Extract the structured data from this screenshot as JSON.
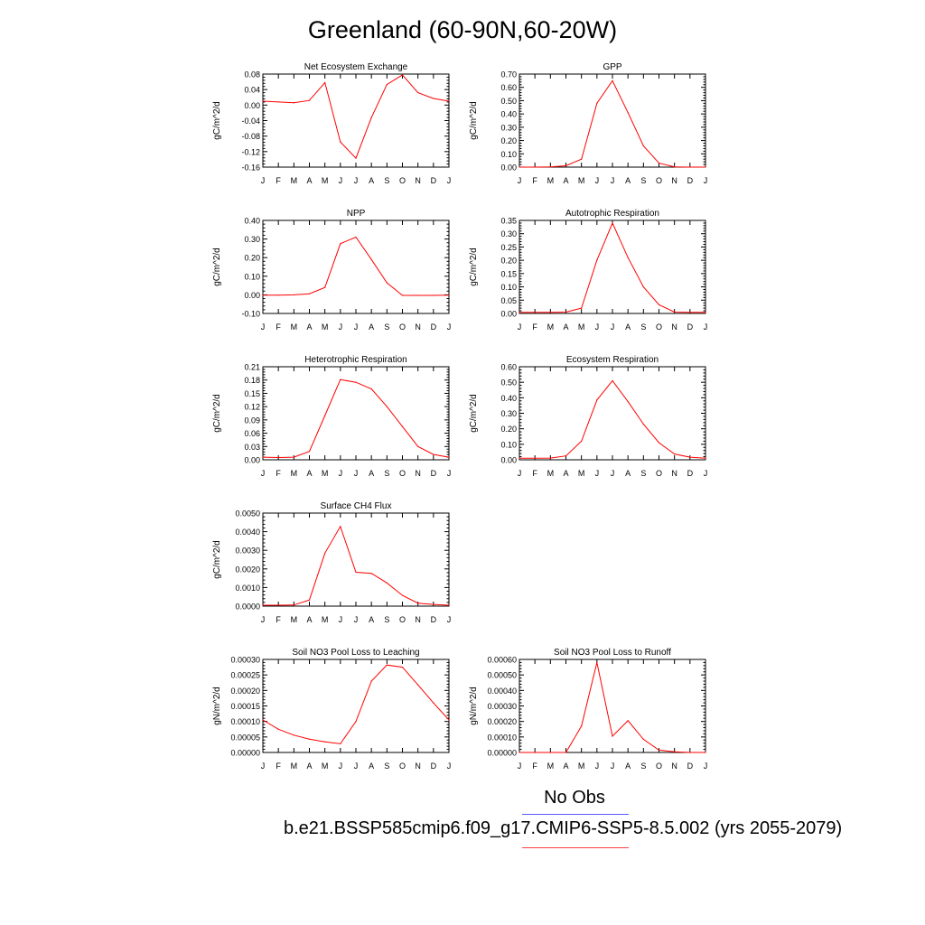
{
  "title": "Greenland (60-90N,60-20W)",
  "legend": {
    "obs_label": "No Obs",
    "case_label": "b.e21.BSSP585cmip6.f09_g17.CMIP6-SSP5-8.5.002 (yrs 2055-2079)",
    "obs_color": "#5a5aff",
    "case_color": "#ff0000"
  },
  "chart_data": [
    {
      "type": "line",
      "title": "Net Ecosystem Exchange",
      "ylabel": "gC/m^2/d",
      "categories": [
        "J",
        "F",
        "M",
        "A",
        "M",
        "J",
        "J",
        "A",
        "S",
        "O",
        "N",
        "D",
        "J"
      ],
      "yticks": [
        "-0.16",
        "-0.12",
        "-0.08",
        "-0.04",
        "0.00",
        "0.04",
        "0.08"
      ],
      "ylim": [
        -0.16,
        0.08
      ],
      "values": [
        0.01,
        0.008,
        0.006,
        0.012,
        0.058,
        -0.095,
        -0.137,
        -0.032,
        0.053,
        0.078,
        0.032,
        0.017,
        0.01
      ],
      "color": "#ff0000"
    },
    {
      "type": "line",
      "title": "GPP",
      "ylabel": "gC/m^2/d",
      "categories": [
        "J",
        "F",
        "M",
        "A",
        "M",
        "J",
        "J",
        "A",
        "S",
        "O",
        "N",
        "D",
        "J"
      ],
      "yticks": [
        "0.00",
        "0.10",
        "0.20",
        "0.30",
        "0.40",
        "0.50",
        "0.60",
        "0.70"
      ],
      "ylim": [
        0,
        0.7
      ],
      "values": [
        0.0,
        0.0,
        0.002,
        0.01,
        0.06,
        0.48,
        0.65,
        0.41,
        0.16,
        0.03,
        0.002,
        0.0,
        0.0
      ],
      "color": "#ff0000"
    },
    {
      "type": "line",
      "title": "NPP",
      "ylabel": "gC/m^2/d",
      "categories": [
        "J",
        "F",
        "M",
        "A",
        "M",
        "J",
        "J",
        "A",
        "S",
        "O",
        "N",
        "D",
        "J"
      ],
      "yticks": [
        "-0.10",
        "0.00",
        "0.10",
        "0.20",
        "0.30",
        "0.40"
      ],
      "ylim": [
        -0.1,
        0.4
      ],
      "values": [
        -0.002,
        -0.002,
        0.0,
        0.006,
        0.04,
        0.275,
        0.31,
        0.19,
        0.065,
        -0.003,
        -0.003,
        -0.003,
        -0.002
      ],
      "color": "#ff0000"
    },
    {
      "type": "line",
      "title": "Autotrophic Respiration",
      "ylabel": "gC/m^2/d",
      "categories": [
        "J",
        "F",
        "M",
        "A",
        "M",
        "J",
        "J",
        "A",
        "S",
        "O",
        "N",
        "D",
        "J"
      ],
      "yticks": [
        "0.00",
        "0.05",
        "0.10",
        "0.15",
        "0.20",
        "0.25",
        "0.30",
        "0.35"
      ],
      "ylim": [
        0,
        0.35
      ],
      "values": [
        0.004,
        0.004,
        0.004,
        0.005,
        0.02,
        0.2,
        0.34,
        0.21,
        0.1,
        0.033,
        0.005,
        0.004,
        0.004
      ],
      "color": "#ff0000"
    },
    {
      "type": "line",
      "title": "Heterotrophic Respiration",
      "ylabel": "gC/m^2/d",
      "categories": [
        "J",
        "F",
        "M",
        "A",
        "M",
        "J",
        "J",
        "A",
        "S",
        "O",
        "N",
        "D",
        "J"
      ],
      "yticks": [
        "0.00",
        "0.03",
        "0.06",
        "0.09",
        "0.12",
        "0.15",
        "0.18",
        "0.21"
      ],
      "ylim": [
        0,
        0.21
      ],
      "values": [
        0.006,
        0.005,
        0.006,
        0.019,
        0.1,
        0.181,
        0.175,
        0.16,
        0.12,
        0.075,
        0.03,
        0.012,
        0.006
      ],
      "color": "#ff0000"
    },
    {
      "type": "line",
      "title": "Ecosystem Respiration",
      "ylabel": "gC/m^2/d",
      "categories": [
        "J",
        "F",
        "M",
        "A",
        "M",
        "J",
        "J",
        "A",
        "S",
        "O",
        "N",
        "D",
        "J"
      ],
      "yticks": [
        "0.00",
        "0.10",
        "0.20",
        "0.30",
        "0.40",
        "0.50",
        "0.60"
      ],
      "ylim": [
        0,
        0.6
      ],
      "values": [
        0.01,
        0.01,
        0.011,
        0.025,
        0.12,
        0.385,
        0.51,
        0.375,
        0.23,
        0.11,
        0.037,
        0.017,
        0.01
      ],
      "color": "#ff0000"
    },
    {
      "type": "line",
      "title": "Surface CH4 Flux",
      "ylabel": "gC/m^2/d",
      "categories": [
        "J",
        "F",
        "M",
        "A",
        "M",
        "J",
        "J",
        "A",
        "S",
        "O",
        "N",
        "D",
        "J"
      ],
      "yticks": [
        "0.0000",
        "0.0010",
        "0.0020",
        "0.0030",
        "0.0040",
        "0.0050"
      ],
      "ylim": [
        0,
        0.005
      ],
      "values": [
        5e-05,
        5e-05,
        6e-05,
        0.00033,
        0.00285,
        0.00428,
        0.00182,
        0.00176,
        0.00125,
        0.00058,
        0.00016,
        9e-05,
        5e-05
      ],
      "color": "#ff0000"
    },
    {
      "type": "line",
      "title": "Soil NO3 Pool Loss to Leaching",
      "ylabel": "gN/m^2/d",
      "categories": [
        "J",
        "F",
        "M",
        "A",
        "M",
        "J",
        "J",
        "A",
        "S",
        "O",
        "N",
        "D",
        "J"
      ],
      "yticks": [
        "0.00000",
        "0.00005",
        "0.00010",
        "0.00015",
        "0.00020",
        "0.00025",
        "0.00030"
      ],
      "ylim": [
        0,
        0.0003
      ],
      "values": [
        0.000105,
        7.5e-05,
        5.6e-05,
        4.3e-05,
        3.4e-05,
        2.8e-05,
        0.0001,
        0.00023,
        0.000282,
        0.000275,
        0.000218,
        0.00016,
        0.000105
      ],
      "color": "#ff0000"
    },
    {
      "type": "line",
      "title": "Soil NO3 Pool Loss to Runoff",
      "ylabel": "gN/m^2/d",
      "categories": [
        "J",
        "F",
        "M",
        "A",
        "M",
        "J",
        "J",
        "A",
        "S",
        "O",
        "N",
        "D",
        "J"
      ],
      "yticks": [
        "0.00000",
        "0.00010",
        "0.00020",
        "0.00030",
        "0.00040",
        "0.00050",
        "0.00060"
      ],
      "ylim": [
        0,
        0.0006
      ],
      "values": [
        0.0,
        0.0,
        0.0,
        0.0,
        0.00017,
        0.00058,
        0.000105,
        0.000205,
        8.5e-05,
        1.5e-05,
        4e-06,
        0.0,
        0.0
      ],
      "color": "#ff0000"
    }
  ]
}
